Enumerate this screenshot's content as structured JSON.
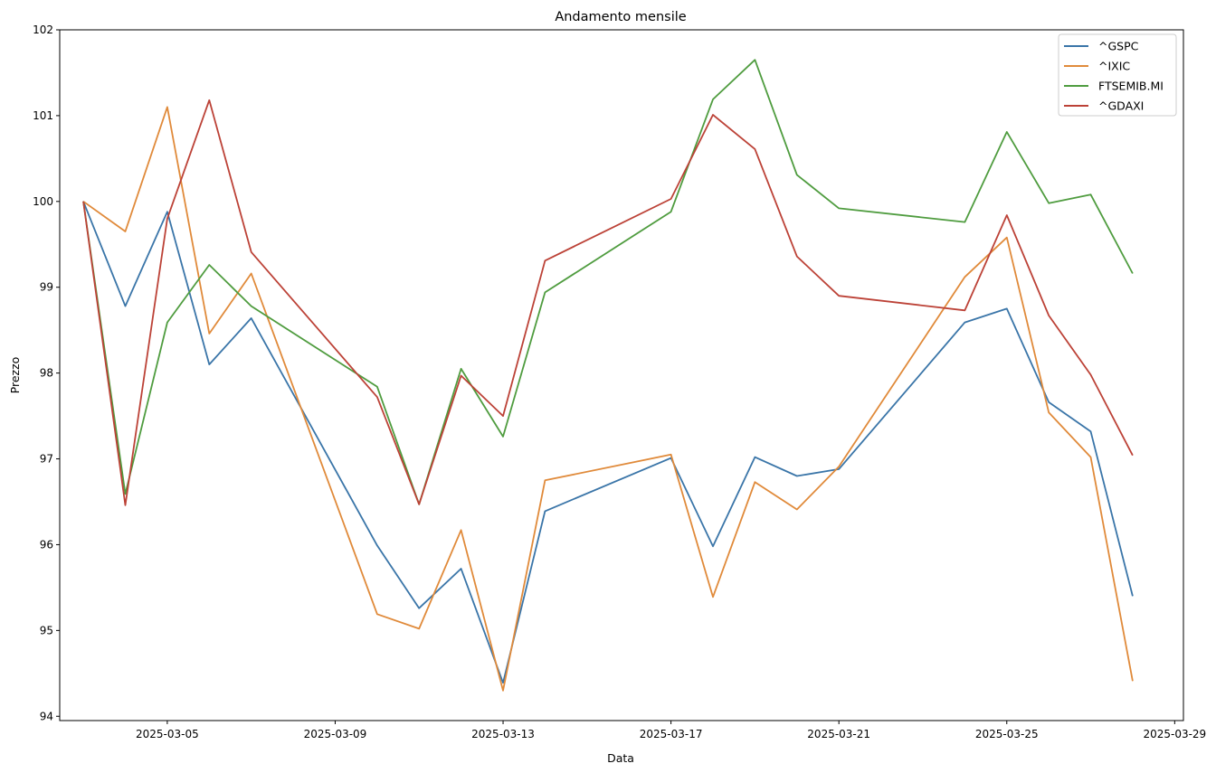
{
  "chart_data": {
    "type": "line",
    "title": "Andamento mensile",
    "xlabel": "Data",
    "ylabel": "Prezzo",
    "x": [
      "2025-03-03",
      "2025-03-04",
      "2025-03-05",
      "2025-03-06",
      "2025-03-07",
      "2025-03-10",
      "2025-03-11",
      "2025-03-12",
      "2025-03-13",
      "2025-03-14",
      "2025-03-17",
      "2025-03-18",
      "2025-03-19",
      "2025-03-20",
      "2025-03-21",
      "2025-03-24",
      "2025-03-25",
      "2025-03-26",
      "2025-03-27",
      "2025-03-28"
    ],
    "xlim": [
      "2025-03-02T10:30",
      "2025-03-29T05:00"
    ],
    "xticks": [
      "2025-03-05",
      "2025-03-09",
      "2025-03-13",
      "2025-03-17",
      "2025-03-21",
      "2025-03-25",
      "2025-03-29"
    ],
    "ylim": [
      93.95,
      102.0
    ],
    "yticks": [
      94,
      95,
      96,
      97,
      98,
      99,
      100,
      101,
      102
    ],
    "grid": false,
    "legend_position": "top-right",
    "series": [
      {
        "name": "^GSPC",
        "color": "#3a75a8",
        "values": [
          100.0,
          98.78,
          99.88,
          98.1,
          98.64,
          95.99,
          95.26,
          95.72,
          94.39,
          96.39,
          97.01,
          95.98,
          97.02,
          96.8,
          96.88,
          98.59,
          98.75,
          97.66,
          97.32,
          95.4
        ]
      },
      {
        "name": "^IXIC",
        "color": "#e08a3a",
        "values": [
          100.0,
          99.65,
          101.1,
          98.46,
          99.16,
          95.19,
          95.02,
          96.17,
          94.3,
          96.75,
          97.05,
          95.39,
          96.73,
          96.41,
          96.91,
          99.12,
          99.58,
          97.54,
          97.02,
          94.41
        ]
      },
      {
        "name": "FTSEMIB.MI",
        "color": "#4f9c3f",
        "values": [
          100.0,
          96.59,
          98.59,
          99.26,
          98.78,
          97.84,
          96.47,
          98.05,
          97.26,
          98.94,
          99.88,
          101.19,
          101.65,
          100.31,
          99.92,
          99.76,
          100.81,
          99.98,
          100.08,
          99.16
        ]
      },
      {
        "name": "^GDAXI",
        "color": "#bc4237",
        "values": [
          100.0,
          96.46,
          99.8,
          101.18,
          99.41,
          97.72,
          96.47,
          97.97,
          97.5,
          99.31,
          100.03,
          101.01,
          100.61,
          99.36,
          98.9,
          98.73,
          99.84,
          98.67,
          97.98,
          97.04
        ]
      }
    ]
  }
}
